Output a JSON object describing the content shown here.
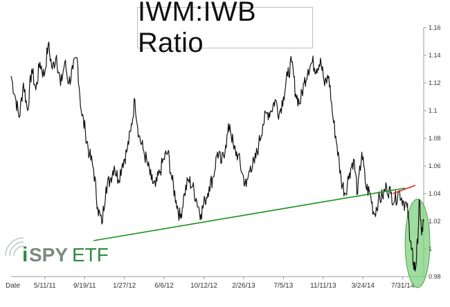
{
  "chart_data": {
    "type": "line",
    "title": "IWM:IWB Ratio",
    "xlabel": "Date",
    "ylabel": "",
    "x_tick_labels": [
      "5/11/11",
      "9/19/11",
      "1/27/12",
      "6/6/12",
      "10/12/12",
      "2/26/13",
      "7/5/13",
      "11/11/13",
      "3/24/14",
      "7/31/14"
    ],
    "y_tick_labels": [
      "0.98",
      "1",
      "1.02",
      "1.04",
      "1.06",
      "1.08",
      "1.1",
      "1.12",
      "1.14",
      "1.16"
    ],
    "ylim": [
      0.98,
      1.16
    ],
    "y_axis_side": "right",
    "grid": false,
    "series": [
      {
        "color": "#111111",
        "points": [
          [
            0,
            1.125
          ],
          [
            0.01,
            1.11
          ],
          [
            0.02,
            1.095
          ],
          [
            0.03,
            1.12
          ],
          [
            0.04,
            1.1
          ],
          [
            0.05,
            1.13
          ],
          [
            0.06,
            1.115
          ],
          [
            0.07,
            1.135
          ],
          [
            0.08,
            1.125
          ],
          [
            0.09,
            1.148
          ],
          [
            0.1,
            1.13
          ],
          [
            0.11,
            1.14
          ],
          [
            0.12,
            1.118
          ],
          [
            0.13,
            1.135
          ],
          [
            0.14,
            1.12
          ],
          [
            0.15,
            1.13
          ],
          [
            0.16,
            1.138
          ],
          [
            0.17,
            1.1
          ],
          [
            0.18,
            1.085
          ],
          [
            0.19,
            1.068
          ],
          [
            0.2,
            1.058
          ],
          [
            0.21,
            1.03
          ],
          [
            0.22,
            1.018
          ],
          [
            0.23,
            1.045
          ],
          [
            0.24,
            1.05
          ],
          [
            0.25,
            1.06
          ],
          [
            0.26,
            1.05
          ],
          [
            0.27,
            1.062
          ],
          [
            0.28,
            1.07
          ],
          [
            0.29,
            1.085
          ],
          [
            0.3,
            1.108
          ],
          [
            0.31,
            1.082
          ],
          [
            0.32,
            1.072
          ],
          [
            0.33,
            1.062
          ],
          [
            0.34,
            1.05
          ],
          [
            0.35,
            1.045
          ],
          [
            0.36,
            1.055
          ],
          [
            0.37,
            1.065
          ],
          [
            0.38,
            1.07
          ],
          [
            0.39,
            1.05
          ],
          [
            0.4,
            1.035
          ],
          [
            0.41,
            1.022
          ],
          [
            0.42,
            1.04
          ],
          [
            0.43,
            1.05
          ],
          [
            0.44,
            1.045
          ],
          [
            0.45,
            1.035
          ],
          [
            0.46,
            1.025
          ],
          [
            0.47,
            1.035
          ],
          [
            0.48,
            1.045
          ],
          [
            0.49,
            1.052
          ],
          [
            0.5,
            1.07
          ],
          [
            0.51,
            1.062
          ],
          [
            0.52,
            1.075
          ],
          [
            0.53,
            1.09
          ],
          [
            0.54,
            1.072
          ],
          [
            0.55,
            1.068
          ],
          [
            0.56,
            1.055
          ],
          [
            0.57,
            1.045
          ],
          [
            0.58,
            1.06
          ],
          [
            0.59,
            1.062
          ],
          [
            0.6,
            1.075
          ],
          [
            0.61,
            1.09
          ],
          [
            0.62,
            1.098
          ],
          [
            0.63,
            1.1
          ],
          [
            0.64,
            1.108
          ],
          [
            0.65,
            1.098
          ],
          [
            0.66,
            1.11
          ],
          [
            0.67,
            1.125
          ],
          [
            0.68,
            1.135
          ],
          [
            0.69,
            1.112
          ],
          [
            0.7,
            1.105
          ],
          [
            0.71,
            1.12
          ],
          [
            0.72,
            1.13
          ],
          [
            0.73,
            1.135
          ],
          [
            0.74,
            1.13
          ],
          [
            0.75,
            1.138
          ],
          [
            0.76,
            1.118
          ],
          [
            0.77,
            1.125
          ],
          [
            0.78,
            1.095
          ],
          [
            0.79,
            1.075
          ],
          [
            0.8,
            1.05
          ],
          [
            0.81,
            1.04
          ],
          [
            0.82,
            1.055
          ],
          [
            0.83,
            1.065
          ],
          [
            0.84,
            1.04
          ],
          [
            0.85,
            1.07
          ],
          [
            0.86,
            1.045
          ],
          [
            0.87,
            1.04
          ],
          [
            0.88,
            1.025
          ],
          [
            0.89,
            1.035
          ],
          [
            0.9,
            1.038
          ],
          [
            0.91,
            1.045
          ],
          [
            0.92,
            1.04
          ],
          [
            0.93,
            1.035
          ],
          [
            0.94,
            1.042
          ],
          [
            0.95,
            1.035
          ],
          [
            0.96,
            1.03
          ],
          [
            0.965,
            1.015
          ],
          [
            0.97,
            1.0
          ],
          [
            0.975,
            0.99
          ],
          [
            0.98,
            0.985
          ],
          [
            0.985,
            1.005
          ],
          [
            0.99,
            1.035
          ],
          [
            0.995,
            1.01
          ],
          [
            1.0,
            1.02
          ]
        ]
      },
      {
        "color": "#169016",
        "points": [
          [
            0.2,
            1.006
          ],
          [
            0.955,
            1.044
          ]
        ]
      },
      {
        "color": "#e0231f",
        "points": [
          [
            0.925,
            1.04
          ],
          [
            0.98,
            1.046
          ]
        ]
      }
    ],
    "annotations": [
      {
        "type": "ellipse",
        "color": "#7fd07f",
        "x_center": 0.985,
        "y_center": 1.004,
        "x_half_width": 0.03,
        "y_half_height": 0.032
      }
    ],
    "logo": {
      "text_i": "i",
      "text_spy": "SPY",
      "text_etf": "ETF",
      "color": "#2e8b3f"
    }
  }
}
